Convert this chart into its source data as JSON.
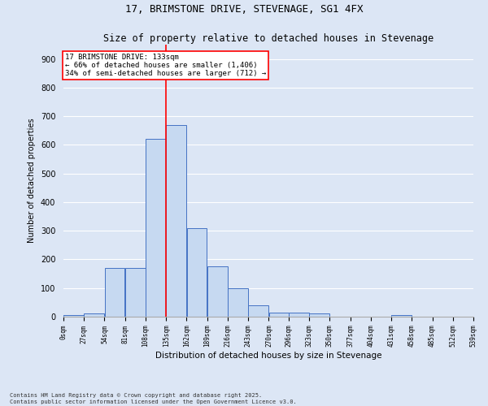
{
  "title": "17, BRIMSTONE DRIVE, STEVENAGE, SG1 4FX",
  "subtitle": "Size of property relative to detached houses in Stevenage",
  "xlabel": "Distribution of detached houses by size in Stevenage",
  "ylabel": "Number of detached properties",
  "bin_labels": [
    "0sqm",
    "27sqm",
    "54sqm",
    "81sqm",
    "108sqm",
    "135sqm",
    "162sqm",
    "189sqm",
    "216sqm",
    "243sqm",
    "270sqm",
    "296sqm",
    "323sqm",
    "350sqm",
    "377sqm",
    "404sqm",
    "431sqm",
    "458sqm",
    "485sqm",
    "512sqm",
    "539sqm"
  ],
  "bin_edges": [
    0,
    27,
    54,
    81,
    108,
    135,
    162,
    189,
    216,
    243,
    270,
    296,
    323,
    350,
    377,
    404,
    431,
    458,
    485,
    512,
    539
  ],
  "bar_heights": [
    5,
    10,
    170,
    170,
    620,
    670,
    310,
    175,
    100,
    40,
    15,
    15,
    10,
    0,
    0,
    0,
    5,
    0,
    0,
    0
  ],
  "bar_color": "#c6d9f1",
  "bar_edge_color": "#4472c4",
  "vline_x": 135,
  "vline_color": "red",
  "annotation_title": "17 BRIMSTONE DRIVE: 133sqm",
  "annotation_line1": "← 66% of detached houses are smaller (1,406)",
  "annotation_line2": "34% of semi-detached houses are larger (712) →",
  "annotation_box_color": "red",
  "annotation_fill": "white",
  "ylim": [
    0,
    950
  ],
  "yticks": [
    0,
    100,
    200,
    300,
    400,
    500,
    600,
    700,
    800,
    900
  ],
  "footer_line1": "Contains HM Land Registry data © Crown copyright and database right 2025.",
  "footer_line2": "Contains public sector information licensed under the Open Government Licence v3.0.",
  "bg_color": "#dce6f5",
  "grid_color": "#ffffff",
  "title_fontsize": 9,
  "subtitle_fontsize": 8.5
}
